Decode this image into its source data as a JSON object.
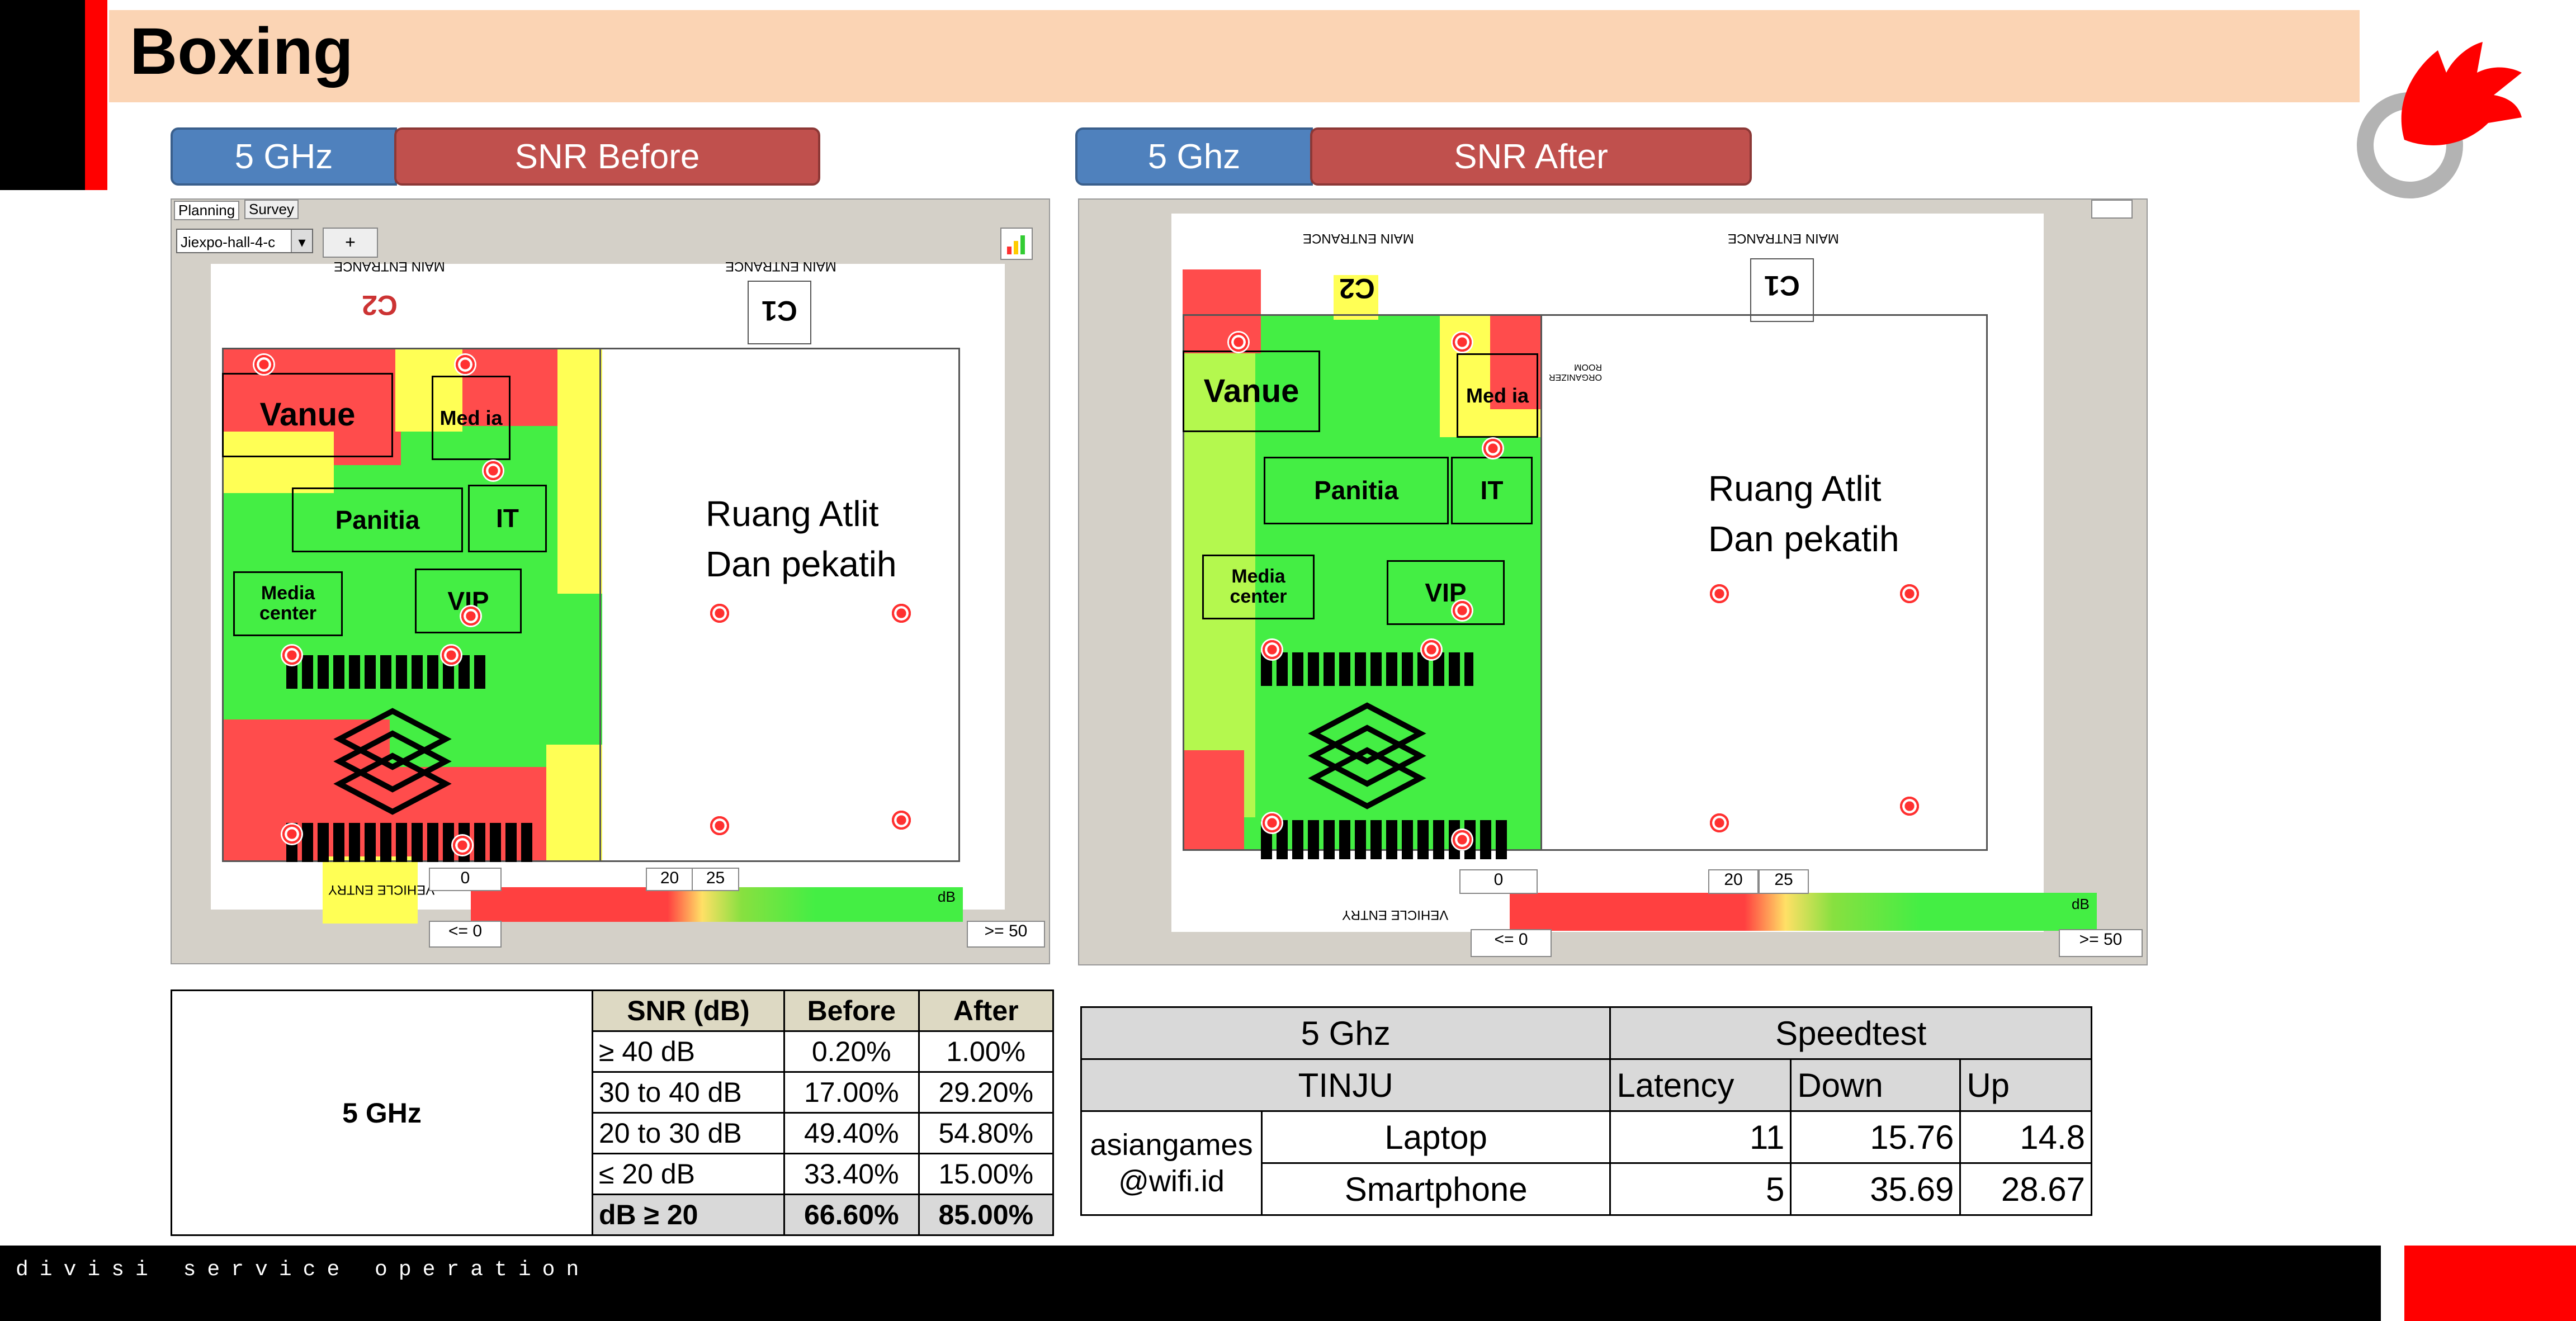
{
  "title": "Boxing",
  "footer": "divisi service operation",
  "colors": {
    "accent_red": "#ff0000",
    "pill_blue": "#4f81bd",
    "pill_red": "#c0504d",
    "title_bg": "#fbd4b4"
  },
  "left_map": {
    "band": "5 GHz",
    "label": "SNR Before",
    "tabs": [
      "Planning",
      "Survey"
    ],
    "select": "Jiexpo-hall-4-c",
    "add": "+",
    "main_entrance": "MAIN ENTRANCE",
    "vehicle_entry": "VEHICLE ENTRY",
    "c1": "C1",
    "c2": "C2",
    "rooms": {
      "vanue": "Vanue",
      "media": "Med ia",
      "panitia": "Panitia",
      "it": "IT",
      "media_center": "Media center",
      "vip": "VIP"
    },
    "athlete_room_1": "Ruang Atlit",
    "athlete_room_2": "Dan pekatih",
    "scale_min": "<= 0",
    "scale_max": ">= 50",
    "scale_zero": "0",
    "scale_20": "20",
    "scale_25": "25",
    "scale_unit": "dB"
  },
  "right_map": {
    "band": "5 Ghz",
    "label": "SNR After",
    "main_entrance": "MAIN ENTRANCE",
    "vehicle_entry": "VEHICLE ENTRY",
    "c1": "C1",
    "c2": "C2",
    "organizer": "ORGANIZER ROOM",
    "rooms": {
      "vanue": "Vanue",
      "media": "Med ia",
      "panitia": "Panitia",
      "it": "IT",
      "media_center": "Media center",
      "vip": "VIP"
    },
    "athlete_room_1": "Ruang Atlit",
    "athlete_room_2": "Dan pekatih",
    "scale_min": "<= 0",
    "scale_max": ">= 50",
    "scale_zero": "0",
    "scale_20": "20",
    "scale_25": "25",
    "scale_unit": "dB"
  },
  "snr_table": {
    "band": "5 GHz",
    "headers": [
      "SNR (dB)",
      "Before",
      "After"
    ],
    "rows": [
      [
        "≥ 40 dB",
        "0.20%",
        "1.00%"
      ],
      [
        "30 to 40 dB",
        "17.00%",
        "29.20%"
      ],
      [
        "20 to 30 dB",
        "49.40%",
        "54.80%"
      ],
      [
        "≤ 20 dB",
        "33.40%",
        "15.00%"
      ]
    ],
    "total": [
      "dB ≥ 20",
      "66.60%",
      "85.00%"
    ]
  },
  "speed_table": {
    "band": "5 Ghz",
    "speedtest": "Speedtest",
    "venue": "TINJU",
    "latency": "Latency",
    "down": "Down",
    "up": "Up",
    "ssid_1": "asiangames",
    "ssid_2": "@wifi.id",
    "rows": [
      [
        "Laptop",
        "11",
        "15.76",
        "14.8"
      ],
      [
        "Smartphone",
        "5",
        "35.69",
        "28.67"
      ]
    ]
  }
}
